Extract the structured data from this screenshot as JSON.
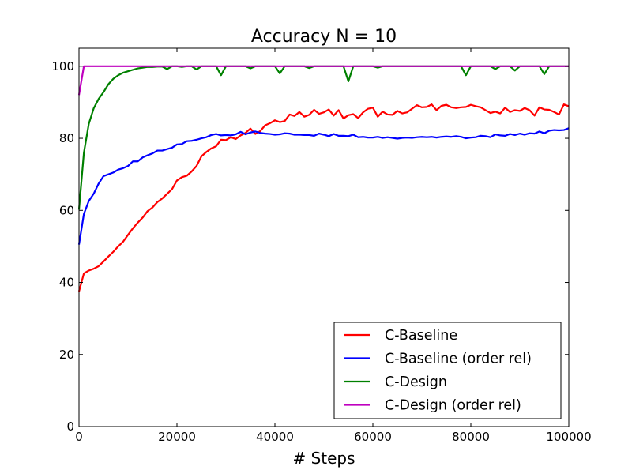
{
  "chart_data": {
    "type": "line",
    "title": "Accuracy N = 10",
    "xlabel": "# Steps",
    "ylabel": "",
    "xlim": [
      0,
      100000
    ],
    "ylim": [
      0,
      105
    ],
    "xticks": [
      0,
      20000,
      40000,
      60000,
      80000,
      100000
    ],
    "xtick_labels": [
      "0",
      "20000",
      "40000",
      "60000",
      "80000",
      "100000"
    ],
    "yticks": [
      0,
      20,
      40,
      60,
      80,
      100
    ],
    "ytick_labels": [
      "0",
      "20",
      "40",
      "60",
      "80",
      "100"
    ],
    "grid": false,
    "legend_position": "lower-right",
    "series": [
      {
        "name": "C-Baseline",
        "color": "#ff0000",
        "x": [
          0,
          1000,
          2000,
          3000,
          4000,
          5000,
          6000,
          7000,
          8000,
          9000,
          10000,
          11000,
          12000,
          13000,
          14000,
          15000,
          16000,
          17000,
          18000,
          19000,
          20000,
          21000,
          22000,
          23000,
          24000,
          25000,
          26000,
          27000,
          28000,
          29000,
          30000,
          31000,
          32000,
          33000,
          34000,
          35000,
          36000,
          37000,
          38000,
          39000,
          40000,
          41000,
          42000,
          43000,
          44000,
          45000,
          46000,
          47000,
          48000,
          49000,
          50000,
          51000,
          52000,
          53000,
          54000,
          55000,
          56000,
          57000,
          58000,
          59000,
          60000,
          61000,
          62000,
          63000,
          64000,
          65000,
          66000,
          67000,
          68000,
          69000,
          70000,
          71000,
          72000,
          73000,
          74000,
          75000,
          76000,
          77000,
          78000,
          79000,
          80000,
          81000,
          82000,
          83000,
          84000,
          85000,
          86000,
          87000,
          88000,
          89000,
          90000,
          91000,
          92000,
          93000,
          94000,
          95000,
          96000,
          97000,
          98000,
          99000,
          100000
        ],
        "y": [
          37.5,
          42.5,
          43.3,
          43.8,
          44.5,
          45.8,
          47.2,
          48.5,
          50.0,
          51.3,
          53.2,
          55.0,
          56.6,
          58.0,
          59.8,
          60.8,
          62.3,
          63.3,
          64.6,
          65.9,
          68.3,
          69.2,
          69.6,
          70.8,
          72.3,
          75.0,
          76.2,
          77.2,
          77.8,
          79.6,
          79.5,
          80.3,
          79.8,
          80.8,
          81.5,
          82.7,
          81.2,
          82.0,
          83.6,
          84.2,
          85.0,
          84.5,
          84.8,
          86.6,
          86.2,
          87.3,
          86.0,
          86.5,
          87.9,
          86.8,
          87.2,
          88.0,
          86.3,
          87.8,
          85.5,
          86.4,
          86.7,
          85.6,
          87.2,
          88.2,
          88.5,
          86.0,
          87.4,
          86.6,
          86.5,
          87.6,
          86.9,
          87.2,
          88.2,
          89.2,
          88.6,
          88.7,
          89.4,
          87.8,
          89.0,
          89.3,
          88.6,
          88.4,
          88.6,
          88.7,
          89.3,
          88.9,
          88.6,
          87.8,
          87.0,
          87.4,
          86.9,
          88.5,
          87.3,
          87.8,
          87.6,
          88.4,
          87.8,
          86.3,
          88.6,
          88.0,
          87.9,
          87.3,
          86.6,
          89.4,
          88.9
        ]
      },
      {
        "name": "C-Baseline (order rel)",
        "color": "#0000ff",
        "x": [
          0,
          1000,
          2000,
          3000,
          4000,
          5000,
          6000,
          7000,
          8000,
          9000,
          10000,
          11000,
          12000,
          13000,
          14000,
          15000,
          16000,
          17000,
          18000,
          19000,
          20000,
          21000,
          22000,
          23000,
          24000,
          25000,
          26000,
          27000,
          28000,
          29000,
          30000,
          31000,
          32000,
          33000,
          34000,
          35000,
          36000,
          37000,
          38000,
          39000,
          40000,
          41000,
          42000,
          43000,
          44000,
          45000,
          46000,
          47000,
          48000,
          49000,
          50000,
          51000,
          52000,
          53000,
          54000,
          55000,
          56000,
          57000,
          58000,
          59000,
          60000,
          61000,
          62000,
          63000,
          64000,
          65000,
          66000,
          67000,
          68000,
          69000,
          70000,
          71000,
          72000,
          73000,
          74000,
          75000,
          76000,
          77000,
          78000,
          79000,
          80000,
          81000,
          82000,
          83000,
          84000,
          85000,
          86000,
          87000,
          88000,
          89000,
          90000,
          91000,
          92000,
          93000,
          94000,
          95000,
          96000,
          97000,
          98000,
          99000,
          100000
        ],
        "y": [
          50.5,
          59.0,
          62.6,
          64.6,
          67.4,
          69.5,
          70.0,
          70.5,
          71.3,
          71.7,
          72.3,
          73.6,
          73.6,
          74.7,
          75.3,
          75.8,
          76.6,
          76.6,
          77.0,
          77.4,
          78.3,
          78.4,
          79.2,
          79.3,
          79.6,
          80.0,
          80.3,
          80.9,
          81.2,
          80.8,
          80.9,
          80.8,
          81.1,
          81.8,
          81.1,
          81.6,
          81.9,
          81.5,
          81.3,
          81.2,
          81.0,
          81.1,
          81.4,
          81.3,
          81.0,
          81.0,
          80.9,
          80.9,
          80.7,
          81.3,
          81.0,
          80.6,
          81.2,
          80.7,
          80.7,
          80.6,
          81.0,
          80.3,
          80.4,
          80.2,
          80.2,
          80.4,
          80.1,
          80.3,
          80.1,
          79.9,
          80.1,
          80.2,
          80.1,
          80.3,
          80.4,
          80.3,
          80.4,
          80.2,
          80.4,
          80.5,
          80.4,
          80.6,
          80.4,
          80.0,
          80.2,
          80.3,
          80.7,
          80.6,
          80.3,
          81.1,
          80.8,
          80.7,
          81.2,
          80.9,
          81.3,
          81.0,
          81.4,
          81.3,
          81.9,
          81.4,
          82.1,
          82.3,
          82.2,
          82.3,
          82.8
        ]
      },
      {
        "name": "C-Design",
        "color": "#008000",
        "x": [
          0,
          1000,
          2000,
          3000,
          4000,
          5000,
          6000,
          7000,
          8000,
          9000,
          10000,
          11000,
          12000,
          13000,
          14000,
          15000,
          16000,
          17000,
          18000,
          19000,
          20000,
          21000,
          22000,
          23000,
          24000,
          25000,
          26000,
          27000,
          28000,
          29000,
          30000,
          31000,
          32000,
          33000,
          34000,
          35000,
          36000,
          37000,
          38000,
          39000,
          40000,
          41000,
          42000,
          43000,
          44000,
          45000,
          46000,
          47000,
          48000,
          49000,
          50000,
          51000,
          52000,
          53000,
          54000,
          55000,
          56000,
          57000,
          58000,
          59000,
          60000,
          61000,
          62000,
          63000,
          64000,
          65000,
          66000,
          67000,
          68000,
          69000,
          70000,
          71000,
          72000,
          73000,
          74000,
          75000,
          76000,
          77000,
          78000,
          79000,
          80000,
          81000,
          82000,
          83000,
          84000,
          85000,
          86000,
          87000,
          88000,
          89000,
          90000,
          91000,
          92000,
          93000,
          94000,
          95000,
          96000,
          97000,
          98000,
          99000,
          100000
        ],
        "y": [
          60.2,
          76.0,
          84.0,
          88.3,
          90.9,
          92.8,
          95.0,
          96.5,
          97.5,
          98.2,
          98.6,
          99.0,
          99.4,
          99.6,
          99.8,
          99.8,
          99.9,
          99.9,
          99.2,
          100.0,
          100.0,
          99.8,
          100.0,
          100.0,
          99.1,
          100.0,
          100.0,
          100.0,
          100.0,
          97.5,
          100.0,
          100.0,
          100.0,
          100.0,
          100.0,
          99.4,
          100.0,
          100.0,
          100.0,
          100.0,
          100.0,
          98.0,
          100.0,
          100.0,
          100.0,
          100.0,
          100.0,
          99.5,
          100.0,
          100.0,
          100.0,
          100.0,
          100.0,
          100.0,
          100.0,
          95.8,
          100.0,
          100.0,
          100.0,
          100.0,
          100.0,
          99.6,
          100.0,
          100.0,
          100.0,
          100.0,
          100.0,
          100.0,
          100.0,
          100.0,
          100.0,
          100.0,
          100.0,
          100.0,
          100.0,
          100.0,
          100.0,
          100.0,
          100.0,
          97.5,
          100.0,
          100.0,
          100.0,
          100.0,
          100.0,
          99.2,
          100.0,
          100.0,
          100.0,
          98.8,
          100.0,
          100.0,
          100.0,
          100.0,
          100.0,
          97.8,
          100.0,
          100.0,
          100.0,
          100.0,
          100.0
        ]
      },
      {
        "name": "C-Design (order rel)",
        "color": "#bf00bf",
        "x": [
          0,
          1000,
          2000,
          3000,
          4000,
          5000,
          6000,
          7000,
          8000,
          9000,
          10000,
          11000,
          12000,
          13000,
          14000,
          15000,
          16000,
          17000,
          18000,
          19000,
          20000,
          21000,
          22000,
          23000,
          24000,
          25000,
          26000,
          27000,
          28000,
          29000,
          30000,
          31000,
          32000,
          33000,
          34000,
          35000,
          36000,
          37000,
          38000,
          39000,
          40000,
          41000,
          42000,
          43000,
          44000,
          45000,
          46000,
          47000,
          48000,
          49000,
          50000,
          51000,
          52000,
          53000,
          54000,
          55000,
          56000,
          57000,
          58000,
          59000,
          60000,
          61000,
          62000,
          63000,
          64000,
          65000,
          66000,
          67000,
          68000,
          69000,
          70000,
          71000,
          72000,
          73000,
          74000,
          75000,
          76000,
          77000,
          78000,
          79000,
          80000,
          81000,
          82000,
          83000,
          84000,
          85000,
          86000,
          87000,
          88000,
          89000,
          90000,
          91000,
          92000,
          93000,
          94000,
          95000,
          96000,
          97000,
          98000,
          99000,
          100000
        ],
        "y": [
          92.0,
          100.0,
          100.0,
          100.0,
          100.0,
          100.0,
          100.0,
          100.0,
          100.0,
          100.0,
          100.0,
          100.0,
          100.0,
          100.0,
          100.0,
          100.0,
          100.0,
          100.0,
          100.0,
          100.0,
          100.0,
          100.0,
          100.0,
          100.0,
          100.0,
          100.0,
          100.0,
          100.0,
          100.0,
          100.0,
          100.0,
          100.0,
          100.0,
          100.0,
          100.0,
          100.0,
          100.0,
          100.0,
          100.0,
          100.0,
          100.0,
          100.0,
          100.0,
          100.0,
          100.0,
          100.0,
          100.0,
          100.0,
          100.0,
          100.0,
          100.0,
          100.0,
          100.0,
          100.0,
          100.0,
          100.0,
          100.0,
          100.0,
          100.0,
          100.0,
          100.0,
          100.0,
          100.0,
          100.0,
          100.0,
          100.0,
          100.0,
          100.0,
          100.0,
          100.0,
          100.0,
          100.0,
          100.0,
          100.0,
          100.0,
          100.0,
          100.0,
          100.0,
          100.0,
          100.0,
          100.0,
          100.0,
          100.0,
          100.0,
          100.0,
          100.0,
          100.0,
          100.0,
          100.0,
          100.0,
          100.0,
          100.0,
          100.0,
          100.0,
          100.0,
          100.0,
          100.0,
          100.0,
          100.0,
          100.0,
          100.0
        ]
      }
    ]
  }
}
